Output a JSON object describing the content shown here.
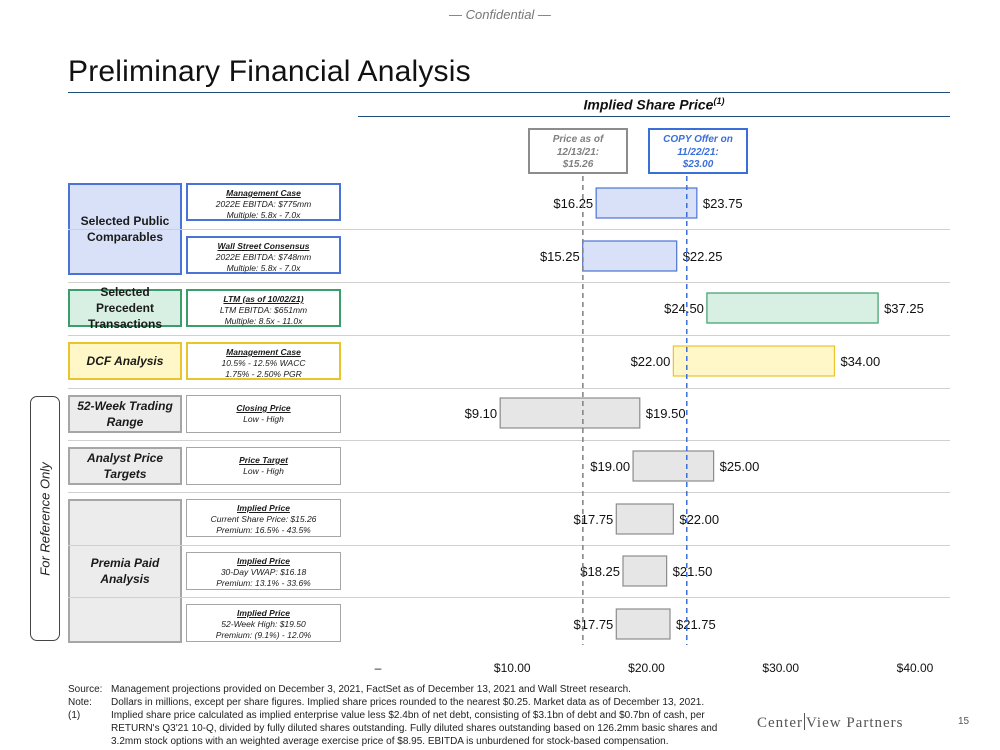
{
  "header": {
    "confidential": "— Confidential —",
    "title": "Preliminary Financial Analysis",
    "chart_title": "Implied Share Price",
    "chart_title_sup": "(1)"
  },
  "reference_lines": [
    {
      "lines": [
        "Price as of",
        "12/13/21:",
        "$15.26"
      ],
      "value": 15.26,
      "color": "#7f7f7f"
    },
    {
      "lines": [
        "COPY Offer on",
        "11/22/21:",
        "$23.00"
      ],
      "value": 23.0,
      "color": "#3a6fd8"
    }
  ],
  "groups": [
    {
      "label": "Selected Public Comparables",
      "style": "blue"
    },
    {
      "label": "Selected Precedent Transactions",
      "style": "green"
    },
    {
      "label": "DCF Analysis",
      "style": "yellow"
    },
    {
      "label": "52-Week Trading Range",
      "style": "gray"
    },
    {
      "label": "Analyst Price Targets",
      "style": "gray"
    },
    {
      "label": "Premia Paid Analysis",
      "style": "gray"
    }
  ],
  "methods": [
    {
      "title": "Management Case",
      "lines": [
        "2022E EBITDA: $775mm",
        "Multiple: 5.8x - 7.0x"
      ]
    },
    {
      "title": "Wall Street Consensus",
      "lines": [
        "2022E EBITDA: $748mm",
        "Multiple: 5.8x - 7.0x"
      ]
    },
    {
      "title": "LTM (as of 10/02/21)",
      "lines": [
        "LTM EBITDA: $651mm",
        "Multiple: 8.5x - 11.0x"
      ]
    },
    {
      "title": "Management Case",
      "lines": [
        "10.5% - 12.5% WACC",
        "1.75% - 2.50% PGR"
      ]
    },
    {
      "title": "Closing Price",
      "lines": [
        "Low - High"
      ]
    },
    {
      "title": "Price Target",
      "lines": [
        "Low - High"
      ]
    },
    {
      "title": "Implied Price",
      "lines": [
        "Current Share Price: $15.26",
        "Premium: 16.5% - 43.5%"
      ]
    },
    {
      "title": "Implied Price",
      "lines": [
        "30-Day VWAP: $16.18",
        "Premium: 13.1% - 33.6%"
      ]
    },
    {
      "title": "Implied Price",
      "lines": [
        "52-Week High: $19.50",
        "Premium: (9.1%) - 12.0%"
      ]
    }
  ],
  "for_reference_only": "For Reference Only",
  "chart_data": {
    "type": "bar",
    "orientation": "horizontal-range",
    "x": [
      0,
      10,
      20,
      30,
      40
    ],
    "xlim": [
      0,
      40
    ],
    "tick_labels": [
      "–",
      "$10.00",
      "$20.00",
      "$30.00",
      "$40.00"
    ],
    "bars": [
      {
        "low": 16.25,
        "high": 23.75,
        "low_label": "$16.25",
        "high_label": "$23.75",
        "fill": "#d9e1f9",
        "stroke": "#4a73d6"
      },
      {
        "low": 15.25,
        "high": 22.25,
        "low_label": "$15.25",
        "high_label": "$22.25",
        "fill": "#d9e1f9",
        "stroke": "#4a73d6"
      },
      {
        "low": 24.5,
        "high": 37.25,
        "low_label": "$24.50",
        "high_label": "$37.25",
        "fill": "#d7f0e3",
        "stroke": "#3b9d6a"
      },
      {
        "low": 22.0,
        "high": 34.0,
        "low_label": "$22.00",
        "high_label": "$34.00",
        "fill": "#fff7c7",
        "stroke": "#e9c42b"
      },
      {
        "low": 9.1,
        "high": 19.5,
        "low_label": "$9.10",
        "high_label": "$19.50",
        "fill": "#e6e6e6",
        "stroke": "#8c8c8c"
      },
      {
        "low": 19.0,
        "high": 25.0,
        "low_label": "$19.00",
        "high_label": "$25.00",
        "fill": "#e6e6e6",
        "stroke": "#8c8c8c"
      },
      {
        "low": 17.75,
        "high": 22.0,
        "low_label": "$17.75",
        "high_label": "$22.00",
        "fill": "#e6e6e6",
        "stroke": "#8c8c8c"
      },
      {
        "low": 18.25,
        "high": 21.5,
        "low_label": "$18.25",
        "high_label": "$21.50",
        "fill": "#e6e6e6",
        "stroke": "#8c8c8c"
      },
      {
        "low": 17.75,
        "high": 21.75,
        "low_label": "$17.75",
        "high_label": "$21.75",
        "fill": "#e6e6e6",
        "stroke": "#8c8c8c"
      }
    ]
  },
  "footnotes": [
    {
      "label": "Source:",
      "text": "Management projections provided on December 3, 2021, FactSet as of December 13, 2021 and Wall Street research."
    },
    {
      "label": "Note:",
      "text": "Dollars in millions, except per share figures. Implied share prices rounded to the nearest $0.25. Market data as of December 13, 2021."
    },
    {
      "label": "(1)",
      "text": "Implied share price calculated as implied enterprise value less $2.4bn of net debt, consisting of $3.1bn of debt and $0.7bn of cash, per RETURN's Q3'21 10-Q, divided by fully diluted shares outstanding. Fully diluted shares outstanding based on 126.2mm basic shares and 3.2mm stock options with an weighted average exercise price of $8.95. EBITDA is unburdened for stock-based compensation."
    }
  ],
  "logo": {
    "left": "Center",
    "right": "View Partners"
  },
  "page_number": "15"
}
